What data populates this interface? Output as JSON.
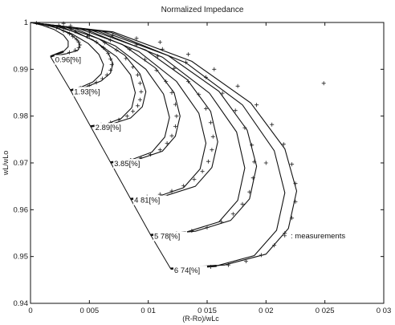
{
  "colors": {
    "curve": "#111111",
    "marker": "#222222",
    "frame": "#111111",
    "background": "#ffffff"
  },
  "chart_data": {
    "type": "line",
    "title": "Normalized Impedance",
    "xlabel": "(R-Ro)/wLc",
    "ylabel": "wL/wLo",
    "xlim": [
      0,
      0.03
    ],
    "ylim": [
      0.94,
      1.0
    ],
    "xticks": [
      0,
      0.005,
      0.01,
      0.015,
      0.02,
      0.025,
      0.03
    ],
    "xtick_labels": [
      "0",
      "0 005",
      "0 01",
      "0 015",
      "0 02",
      "0 025",
      "0 03"
    ],
    "yticks": [
      0.94,
      0.95,
      0.96,
      0.97,
      0.98,
      0.99,
      1.0
    ],
    "ytick_labels": [
      "0.94",
      "0.95",
      "0.96",
      "0.97",
      "0.98",
      "0.99",
      "1"
    ],
    "grid": false,
    "legend": {
      "placement": "right",
      "marker": "+",
      "label": ": measurements"
    },
    "series": [
      {
        "name": "0.96[%]",
        "tip": [
          0.0017,
          0.9927
        ],
        "outer": [
          [
            0,
            1.0
          ],
          [
            0.0012,
            0.9995
          ],
          [
            0.0024,
            0.9987
          ],
          [
            0.0034,
            0.9975
          ],
          [
            0.004,
            0.9962
          ],
          [
            0.0042,
            0.995
          ],
          [
            0.004,
            0.994
          ],
          [
            0.003,
            0.9933
          ],
          [
            0.0017,
            0.9927
          ]
        ],
        "inner": [
          [
            0,
            1.0
          ],
          [
            0.001,
            0.9994
          ],
          [
            0.002,
            0.9985
          ],
          [
            0.0028,
            0.9973
          ],
          [
            0.0032,
            0.996
          ],
          [
            0.0032,
            0.9948
          ],
          [
            0.0028,
            0.9938
          ],
          [
            0.0017,
            0.9927
          ]
        ],
        "points": [
          [
            0.0005,
            0.9999
          ],
          [
            0.0015,
            0.9993
          ],
          [
            0.0022,
            0.9989
          ],
          [
            0.0028,
            0.9982
          ],
          [
            0.0033,
            0.9976
          ],
          [
            0.0036,
            0.997
          ],
          [
            0.0039,
            0.9964
          ],
          [
            0.0041,
            0.9958
          ],
          [
            0.0042,
            0.9952
          ],
          [
            0.0041,
            0.9946
          ],
          [
            0.0038,
            0.9941
          ],
          [
            0.0033,
            0.9936
          ],
          [
            0.0028,
            0.9998
          ],
          [
            0.0034,
            0.9993
          ],
          [
            0.0024,
            0.9994
          ]
        ]
      },
      {
        "name": "1.93[%]",
        "tip": [
          0.0034,
          0.9855
        ],
        "outer": [
          [
            0,
            1.0
          ],
          [
            0.002,
            0.9993
          ],
          [
            0.004,
            0.9978
          ],
          [
            0.0056,
            0.9958
          ],
          [
            0.0066,
            0.9935
          ],
          [
            0.007,
            0.9912
          ],
          [
            0.0068,
            0.9892
          ],
          [
            0.006,
            0.9875
          ],
          [
            0.0048,
            0.9863
          ],
          [
            0.0034,
            0.9855
          ]
        ],
        "inner": [
          [
            0,
            1.0
          ],
          [
            0.0018,
            0.9992
          ],
          [
            0.0035,
            0.9976
          ],
          [
            0.0049,
            0.9955
          ],
          [
            0.0058,
            0.9932
          ],
          [
            0.0062,
            0.991
          ],
          [
            0.006,
            0.989
          ],
          [
            0.0053,
            0.9873
          ],
          [
            0.0043,
            0.9862
          ],
          [
            0.0034,
            0.9855
          ]
        ],
        "points": [
          [
            0.0025,
            0.999
          ],
          [
            0.0038,
            0.9981
          ],
          [
            0.0048,
            0.997
          ],
          [
            0.0056,
            0.9958
          ],
          [
            0.0062,
            0.9946
          ],
          [
            0.0066,
            0.9934
          ],
          [
            0.0068,
            0.9922
          ],
          [
            0.0069,
            0.991
          ],
          [
            0.0068,
            0.9898
          ],
          [
            0.0065,
            0.9888
          ],
          [
            0.0061,
            0.988
          ],
          [
            0.0056,
            0.9872
          ],
          [
            0.005,
            0.9865
          ],
          [
            0.0045,
            0.986
          ],
          [
            0.004,
            0.9857
          ]
        ]
      },
      {
        "name": "2.89[%]",
        "tip": [
          0.0051,
          0.9778
        ],
        "outer": [
          [
            0,
            1.0
          ],
          [
            0.003,
            0.999
          ],
          [
            0.0058,
            0.9965
          ],
          [
            0.008,
            0.993
          ],
          [
            0.0093,
            0.989
          ],
          [
            0.0098,
            0.9852
          ],
          [
            0.0095,
            0.982
          ],
          [
            0.0085,
            0.9796
          ],
          [
            0.007,
            0.9784
          ],
          [
            0.0051,
            0.9778
          ]
        ],
        "inner": [
          [
            0,
            1.0
          ],
          [
            0.0028,
            0.9989
          ],
          [
            0.0053,
            0.9963
          ],
          [
            0.0073,
            0.9927
          ],
          [
            0.0085,
            0.9888
          ],
          [
            0.0089,
            0.985
          ],
          [
            0.0086,
            0.9818
          ],
          [
            0.0077,
            0.9795
          ],
          [
            0.0064,
            0.9783
          ],
          [
            0.0051,
            0.9778
          ]
        ],
        "points": [
          [
            0.0035,
            0.9985
          ],
          [
            0.005,
            0.9972
          ],
          [
            0.0063,
            0.9957
          ],
          [
            0.0073,
            0.9941
          ],
          [
            0.0081,
            0.9923
          ],
          [
            0.0087,
            0.9905
          ],
          [
            0.0091,
            0.9888
          ],
          [
            0.0093,
            0.987
          ],
          [
            0.0094,
            0.9852
          ],
          [
            0.0093,
            0.9835
          ],
          [
            0.0091,
            0.9822
          ],
          [
            0.0087,
            0.981
          ],
          [
            0.0082,
            0.98
          ],
          [
            0.0075,
            0.9792
          ],
          [
            0.0068,
            0.9786
          ],
          [
            0.006,
            0.9782
          ]
        ]
      },
      {
        "name": "3.85[%]",
        "tip": [
          0.0068,
          0.9701
        ],
        "outer": [
          [
            0,
            1.0
          ],
          [
            0.004,
            0.9988
          ],
          [
            0.0078,
            0.9953
          ],
          [
            0.0106,
            0.9903
          ],
          [
            0.0122,
            0.985
          ],
          [
            0.0127,
            0.98
          ],
          [
            0.0123,
            0.9757
          ],
          [
            0.0112,
            0.9725
          ],
          [
            0.0092,
            0.9708
          ],
          [
            0.0068,
            0.9701
          ]
        ],
        "inner": [
          [
            0,
            1.0
          ],
          [
            0.0038,
            0.9987
          ],
          [
            0.0072,
            0.995
          ],
          [
            0.0098,
            0.99
          ],
          [
            0.0113,
            0.9847
          ],
          [
            0.0118,
            0.9797
          ],
          [
            0.0114,
            0.9755
          ],
          [
            0.0103,
            0.9723
          ],
          [
            0.0086,
            0.9707
          ],
          [
            0.0068,
            0.9701
          ]
        ],
        "points": [
          [
            0.005,
            0.998
          ],
          [
            0.0068,
            0.9962
          ],
          [
            0.0084,
            0.9943
          ],
          [
            0.0097,
            0.9921
          ],
          [
            0.0107,
            0.9898
          ],
          [
            0.0115,
            0.9874
          ],
          [
            0.012,
            0.985
          ],
          [
            0.0123,
            0.9825
          ],
          [
            0.0124,
            0.98
          ],
          [
            0.0123,
            0.9778
          ],
          [
            0.012,
            0.9758
          ],
          [
            0.0116,
            0.9742
          ],
          [
            0.011,
            0.9728
          ],
          [
            0.0102,
            0.9718
          ],
          [
            0.0094,
            0.9711
          ],
          [
            0.0085,
            0.9706
          ],
          [
            0.0078,
            0.9703
          ]
        ]
      },
      {
        "name": "4 81[%]",
        "tip": [
          0.0085,
          0.9623
        ],
        "outer": [
          [
            0,
            1.0
          ],
          [
            0.005,
            0.9985
          ],
          [
            0.0098,
            0.9941
          ],
          [
            0.0133,
            0.9878
          ],
          [
            0.0153,
            0.981
          ],
          [
            0.0159,
            0.9745
          ],
          [
            0.0154,
            0.969
          ],
          [
            0.014,
            0.965
          ],
          [
            0.0115,
            0.963
          ],
          [
            0.0085,
            0.9623
          ]
        ],
        "inner": [
          [
            0,
            1.0
          ],
          [
            0.0048,
            0.9984
          ],
          [
            0.0092,
            0.9938
          ],
          [
            0.0124,
            0.9874
          ],
          [
            0.0143,
            0.9806
          ],
          [
            0.0149,
            0.9742
          ],
          [
            0.0144,
            0.9687
          ],
          [
            0.013,
            0.9647
          ],
          [
            0.0108,
            0.9628
          ],
          [
            0.0085,
            0.9623
          ]
        ],
        "points": [
          [
            0.007,
            0.9972
          ],
          [
            0.009,
            0.9952
          ],
          [
            0.0108,
            0.9928
          ],
          [
            0.0122,
            0.9902
          ],
          [
            0.0134,
            0.9874
          ],
          [
            0.0143,
            0.9846
          ],
          [
            0.0149,
            0.9816
          ],
          [
            0.0153,
            0.9786
          ],
          [
            0.0155,
            0.9756
          ],
          [
            0.0154,
            0.9728
          ],
          [
            0.0151,
            0.9703
          ],
          [
            0.0146,
            0.9682
          ],
          [
            0.0139,
            0.9665
          ],
          [
            0.013,
            0.9651
          ],
          [
            0.012,
            0.964
          ],
          [
            0.011,
            0.9633
          ],
          [
            0.0099,
            0.9628
          ]
        ]
      },
      {
        "name": "5 78[%]",
        "tip": [
          0.0102,
          0.9546
        ],
        "outer": [
          [
            0,
            1.0
          ],
          [
            0.006,
            0.9982
          ],
          [
            0.0117,
            0.9929
          ],
          [
            0.016,
            0.9853
          ],
          [
            0.0184,
            0.977
          ],
          [
            0.0192,
            0.9693
          ],
          [
            0.0186,
            0.9623
          ],
          [
            0.017,
            0.9577
          ],
          [
            0.014,
            0.9554
          ],
          [
            0.0102,
            0.9546
          ]
        ],
        "inner": [
          [
            0,
            1.0
          ],
          [
            0.0058,
            0.9981
          ],
          [
            0.0112,
            0.9926
          ],
          [
            0.0152,
            0.9849
          ],
          [
            0.0175,
            0.9766
          ],
          [
            0.0182,
            0.9689
          ],
          [
            0.0176,
            0.962
          ],
          [
            0.016,
            0.9574
          ],
          [
            0.0132,
            0.9552
          ],
          [
            0.0102,
            0.9546
          ]
        ],
        "points": [
          [
            0.009,
            0.9966
          ],
          [
            0.0112,
            0.9943
          ],
          [
            0.0132,
            0.9915
          ],
          [
            0.0149,
            0.9883
          ],
          [
            0.0163,
            0.9849
          ],
          [
            0.0174,
            0.9812
          ],
          [
            0.0182,
            0.9775
          ],
          [
            0.0188,
            0.9738
          ],
          [
            0.019,
            0.9702
          ],
          [
            0.0189,
            0.9668
          ],
          [
            0.0186,
            0.9638
          ],
          [
            0.018,
            0.9612
          ],
          [
            0.0172,
            0.9591
          ],
          [
            0.0162,
            0.9574
          ],
          [
            0.015,
            0.9562
          ],
          [
            0.0137,
            0.9555
          ],
          [
            0.0124,
            0.955
          ],
          [
            0.02,
            0.97
          ]
        ]
      },
      {
        "name": "6 74[%]",
        "tip": [
          0.0119,
          0.9474
        ],
        "outer": [
          [
            0,
            1.0
          ],
          [
            0.007,
            0.998
          ],
          [
            0.0137,
            0.9917
          ],
          [
            0.0187,
            0.9828
          ],
          [
            0.0216,
            0.973
          ],
          [
            0.0226,
            0.964
          ],
          [
            0.0219,
            0.956
          ],
          [
            0.02,
            0.9505
          ],
          [
            0.0165,
            0.9482
          ],
          [
            0.0119,
            0.9474
          ]
        ],
        "inner": [
          [
            0,
            1.0
          ],
          [
            0.0068,
            0.9979
          ],
          [
            0.0132,
            0.9914
          ],
          [
            0.018,
            0.9824
          ],
          [
            0.0207,
            0.9726
          ],
          [
            0.0216,
            0.9636
          ],
          [
            0.0209,
            0.9556
          ],
          [
            0.019,
            0.9502
          ],
          [
            0.0158,
            0.948
          ],
          [
            0.0119,
            0.9474
          ]
        ],
        "points": [
          [
            0.011,
            0.9958
          ],
          [
            0.0134,
            0.9932
          ],
          [
            0.0156,
            0.99
          ],
          [
            0.0176,
            0.9864
          ],
          [
            0.0192,
            0.9824
          ],
          [
            0.0205,
            0.9782
          ],
          [
            0.0215,
            0.974
          ],
          [
            0.0222,
            0.9697
          ],
          [
            0.0225,
            0.9656
          ],
          [
            0.0225,
            0.9617
          ],
          [
            0.0222,
            0.9582
          ],
          [
            0.0216,
            0.955
          ],
          [
            0.0207,
            0.9524
          ],
          [
            0.0196,
            0.9503
          ],
          [
            0.0183,
            0.949
          ],
          [
            0.0168,
            0.9482
          ],
          [
            0.0153,
            0.9478
          ],
          [
            0.0138,
            0.9476
          ],
          [
            0.0249,
            0.987
          ]
        ]
      }
    ],
    "envelope": [
      [
        0.0017,
        0.9927
      ],
      [
        0.0034,
        0.9855
      ],
      [
        0.0051,
        0.9778
      ],
      [
        0.0068,
        0.9701
      ],
      [
        0.0085,
        0.9623
      ],
      [
        0.0102,
        0.9546
      ],
      [
        0.0119,
        0.9474
      ]
    ],
    "annotations": [
      {
        "text": "0.96[%]",
        "x": 0.0021,
        "y": 0.9915
      },
      {
        "text": "1.93[%]",
        "x": 0.0037,
        "y": 0.9847
      },
      {
        "text": "2.89[%]",
        "x": 0.0055,
        "y": 0.977
      },
      {
        "text": "3.85[%]",
        "x": 0.0071,
        "y": 0.9693
      },
      {
        "text": "4 81[%]",
        "x": 0.0088,
        "y": 0.9615
      },
      {
        "text": "5 78[%]",
        "x": 0.0105,
        "y": 0.9538
      },
      {
        "text": "6 74[%]",
        "x": 0.0122,
        "y": 0.9465
      }
    ]
  }
}
